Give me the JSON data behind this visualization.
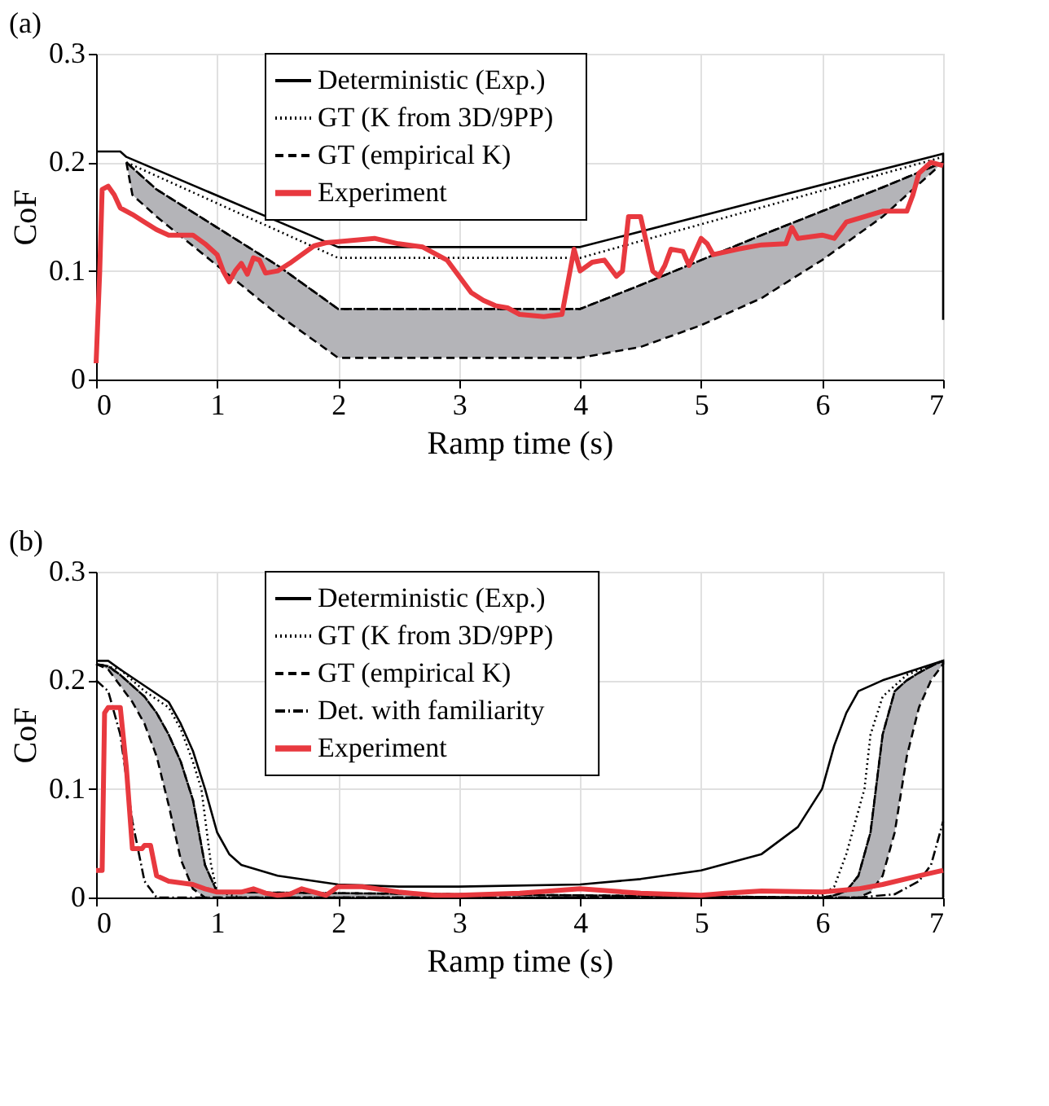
{
  "chart_data": [
    {
      "type": "line",
      "title": "(a)",
      "xlabel": "Ramp time (s)",
      "ylabel": "CoF",
      "xlim": [
        0,
        7
      ],
      "xticks": [
        0,
        1,
        2,
        3,
        4,
        5,
        6,
        7
      ],
      "ylim": [
        0,
        0.3
      ],
      "yticks": [
        0,
        0.1,
        0.2,
        0.3
      ],
      "grid": true,
      "legend": "top",
      "series": [
        {
          "name": "Deterministic (Exp.)",
          "color": "#000000",
          "line_style": "solid",
          "x": [
            0,
            0.2,
            0.25,
            2,
            4,
            7,
            7
          ],
          "values": [
            0.21,
            0.21,
            0.205,
            0.122,
            0.122,
            0.208,
            0.055
          ]
        },
        {
          "name": "GT (K from 3D/9PP)",
          "color": "#000000",
          "line_style": "dotted",
          "x": [
            0.25,
            2,
            4,
            7
          ],
          "values": [
            0.2,
            0.112,
            0.112,
            0.205
          ]
        },
        {
          "name": "GT (empirical K)",
          "color": "#000000",
          "line_style": "dashed",
          "x": [
            0.25,
            0.3,
            0.5,
            1,
            1.5,
            2,
            4,
            4.5,
            5,
            5.5,
            6,
            6.5,
            7
          ],
          "values": [
            0.2,
            0.195,
            0.175,
            0.14,
            0.105,
            0.065,
            0.065,
            0.087,
            0.11,
            0.133,
            0.155,
            0.177,
            0.2
          ],
          "upper": [
            0.2,
            0.195,
            0.175,
            0.14,
            0.105,
            0.065,
            0.065,
            0.087,
            0.11,
            0.133,
            0.155,
            0.177,
            0.2
          ],
          "lower": [
            0.2,
            0.17,
            0.15,
            0.105,
            0.06,
            0.02,
            0.02,
            0.03,
            0.05,
            0.075,
            0.11,
            0.15,
            0.2
          ]
        },
        {
          "name": "Experiment",
          "color": "#e8393f",
          "line_style": "solid",
          "x": [
            0,
            0.03,
            0.05,
            0.1,
            0.15,
            0.2,
            0.3,
            0.4,
            0.5,
            0.6,
            0.8,
            0.9,
            1.0,
            1.05,
            1.1,
            1.15,
            1.2,
            1.25,
            1.3,
            1.35,
            1.4,
            1.5,
            1.6,
            1.7,
            1.8,
            1.9,
            2.0,
            2.3,
            2.5,
            2.7,
            2.9,
            3.0,
            3.1,
            3.2,
            3.3,
            3.4,
            3.5,
            3.7,
            3.85,
            3.9,
            3.95,
            4.0,
            4.1,
            4.2,
            4.3,
            4.35,
            4.4,
            4.5,
            4.55,
            4.6,
            4.65,
            4.7,
            4.75,
            4.85,
            4.9,
            5.0,
            5.05,
            5.1,
            5.3,
            5.5,
            5.7,
            5.75,
            5.8,
            6.0,
            6.1,
            6.2,
            6.5,
            6.7,
            6.75,
            6.8,
            6.9,
            7
          ],
          "values": [
            0.015,
            0.1,
            0.175,
            0.178,
            0.17,
            0.158,
            0.152,
            0.145,
            0.138,
            0.133,
            0.133,
            0.125,
            0.115,
            0.1,
            0.09,
            0.1,
            0.107,
            0.097,
            0.112,
            0.11,
            0.098,
            0.1,
            0.107,
            0.115,
            0.123,
            0.126,
            0.127,
            0.13,
            0.125,
            0.122,
            0.11,
            0.095,
            0.08,
            0.073,
            0.068,
            0.066,
            0.06,
            0.058,
            0.06,
            0.09,
            0.12,
            0.1,
            0.108,
            0.11,
            0.095,
            0.1,
            0.15,
            0.15,
            0.125,
            0.1,
            0.095,
            0.105,
            0.12,
            0.118,
            0.105,
            0.13,
            0.125,
            0.115,
            0.12,
            0.124,
            0.125,
            0.14,
            0.13,
            0.133,
            0.13,
            0.145,
            0.155,
            0.155,
            0.17,
            0.19,
            0.2,
            0.197
          ]
        }
      ]
    },
    {
      "type": "line",
      "title": "(b)",
      "xlabel": "Ramp time (s)",
      "ylabel": "CoF",
      "xlim": [
        0,
        7
      ],
      "xticks": [
        0,
        1,
        2,
        3,
        4,
        5,
        6,
        7
      ],
      "ylim": [
        0,
        0.3
      ],
      "yticks": [
        0,
        0.1,
        0.2,
        0.3
      ],
      "grid": true,
      "legend": "top",
      "series": [
        {
          "name": "Deterministic (Exp.)",
          "color": "#000000",
          "line_style": "solid",
          "x": [
            0,
            0.1,
            0.2,
            0.4,
            0.6,
            0.7,
            0.8,
            0.9,
            1.0,
            1.1,
            1.2,
            1.5,
            2,
            2.5,
            3,
            4,
            4.5,
            5,
            5.5,
            5.8,
            6.0,
            6.1,
            6.2,
            6.3,
            6.5,
            7,
            7
          ],
          "values": [
            0.218,
            0.218,
            0.21,
            0.195,
            0.18,
            0.16,
            0.135,
            0.1,
            0.06,
            0.04,
            0.03,
            0.02,
            0.012,
            0.01,
            0.01,
            0.012,
            0.017,
            0.025,
            0.04,
            0.065,
            0.1,
            0.14,
            0.17,
            0.19,
            0.2,
            0.218,
            0.0
          ]
        },
        {
          "name": "GT (K from 3D/9PP)",
          "color": "#000000",
          "line_style": "dotted",
          "x": [
            0,
            0.2,
            0.4,
            0.6,
            0.7,
            0.8,
            0.87,
            0.95,
            1.0,
            1.2,
            5.8,
            6.0,
            6.1,
            6.2,
            6.3,
            6.35,
            6.4,
            6.5,
            6.7,
            7
          ],
          "values": [
            0.215,
            0.21,
            0.19,
            0.175,
            0.155,
            0.125,
            0.1,
            0.03,
            0.005,
            0,
            0,
            0.002,
            0.01,
            0.04,
            0.08,
            0.1,
            0.15,
            0.185,
            0.205,
            0.218
          ]
        },
        {
          "name": "GT (empirical K)",
          "color": "#000000",
          "line_style": "dashed",
          "x": [
            0,
            0.1,
            0.2,
            0.3,
            0.4,
            0.5,
            0.6,
            0.7,
            0.8,
            0.9,
            1.0,
            6.0,
            6.1,
            6.2,
            6.3,
            6.4,
            6.5,
            6.6,
            6.7,
            6.8,
            6.9,
            7.0
          ],
          "values": [
            0.215,
            0.213,
            0.205,
            0.195,
            0.185,
            0.17,
            0.15,
            0.125,
            0.09,
            0.03,
            0.005,
            0,
            0.002,
            0.006,
            0.02,
            0.06,
            0.15,
            0.19,
            0.2,
            0.207,
            0.213,
            0.218
          ],
          "upper": [
            0.215,
            0.213,
            0.205,
            0.195,
            0.185,
            0.17,
            0.15,
            0.125,
            0.09,
            0.03,
            0.005,
            0,
            0.002,
            0.006,
            0.02,
            0.06,
            0.15,
            0.19,
            0.2,
            0.207,
            0.213,
            0.218
          ],
          "lower": [
            0.215,
            0.21,
            0.195,
            0.18,
            0.16,
            0.13,
            0.085,
            0.035,
            0.008,
            0,
            0,
            0,
            0,
            0,
            0,
            0.005,
            0.02,
            0.06,
            0.13,
            0.175,
            0.2,
            0.215
          ]
        },
        {
          "name": "Det. with familiarity",
          "color": "#000000",
          "line_style": "dashdot",
          "x": [
            0,
            0.1,
            0.2,
            0.3,
            0.4,
            0.5,
            6.3,
            6.6,
            6.8,
            6.9,
            7
          ],
          "values": [
            0.2,
            0.19,
            0.15,
            0.07,
            0.015,
            0,
            0,
            0.003,
            0.015,
            0.03,
            0.07
          ]
        },
        {
          "name": "Experiment",
          "color": "#e8393f",
          "line_style": "solid",
          "x": [
            0,
            0.05,
            0.07,
            0.1,
            0.2,
            0.25,
            0.3,
            0.38,
            0.4,
            0.45,
            0.5,
            0.6,
            0.8,
            0.9,
            1.0,
            1.2,
            1.3,
            1.4,
            1.5,
            1.6,
            1.7,
            1.8,
            1.9,
            2.0,
            2.2,
            2.5,
            2.8,
            3.0,
            3.5,
            4.0,
            4.5,
            5.0,
            5.2,
            5.5,
            6.0,
            6.3,
            6.5,
            6.8,
            7
          ],
          "values": [
            0.025,
            0.025,
            0.17,
            0.175,
            0.175,
            0.12,
            0.045,
            0.045,
            0.048,
            0.048,
            0.02,
            0.015,
            0.012,
            0.008,
            0.005,
            0.005,
            0.008,
            0.004,
            0.002,
            0.003,
            0.008,
            0.005,
            0.002,
            0.01,
            0.01,
            0.005,
            0.002,
            0.002,
            0.004,
            0.008,
            0.004,
            0.002,
            0.004,
            0.006,
            0.005,
            0.008,
            0.012,
            0.02,
            0.025
          ]
        }
      ]
    }
  ]
}
